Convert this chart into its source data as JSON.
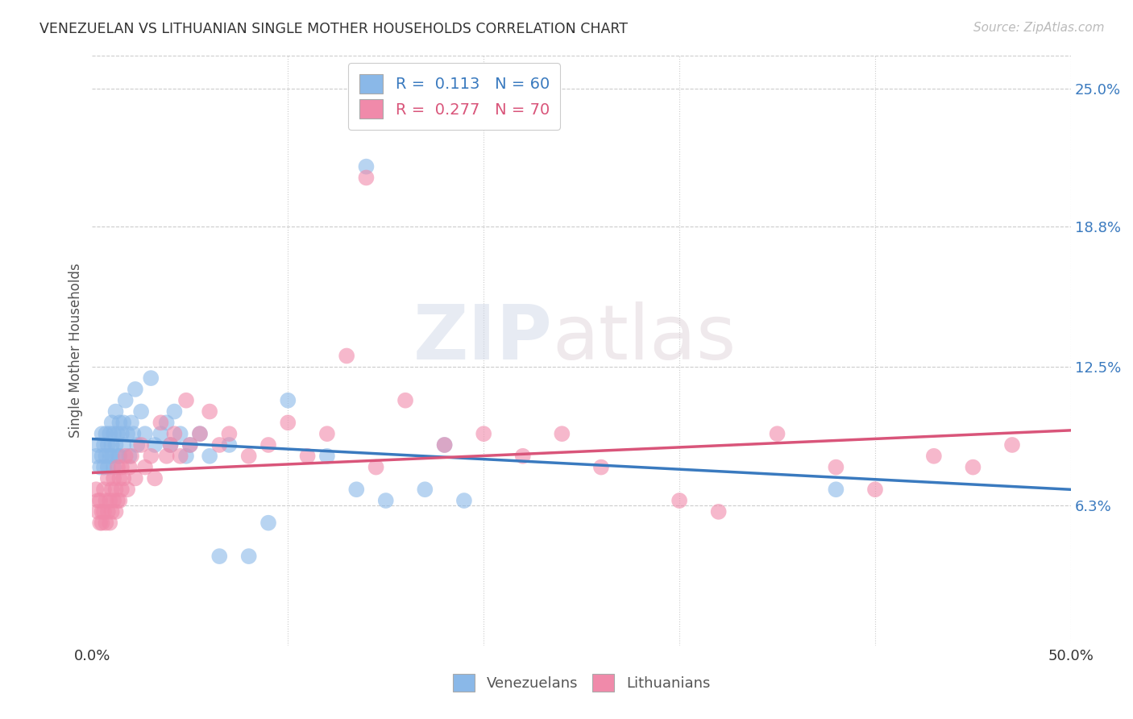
{
  "title": "VENEZUELAN VS LITHUANIAN SINGLE MOTHER HOUSEHOLDS CORRELATION CHART",
  "source": "Source: ZipAtlas.com",
  "ylabel": "Single Mother Households",
  "ytick_labels": [
    "6.3%",
    "12.5%",
    "18.8%",
    "25.0%"
  ],
  "ytick_values": [
    0.063,
    0.125,
    0.188,
    0.25
  ],
  "xlim": [
    0.0,
    0.5
  ],
  "ylim": [
    0.0,
    0.265
  ],
  "venezuelan_color": "#8ab8e8",
  "lithuanian_color": "#f08aaa",
  "venezuelan_line_color": "#3a7abf",
  "lithuanian_line_color": "#d9557a",
  "background_color": "#ffffff",
  "grid_color": "#cccccc",
  "watermark": "ZIPatlas",
  "venezuelan_x": [
    0.002,
    0.003,
    0.004,
    0.005,
    0.005,
    0.006,
    0.006,
    0.007,
    0.007,
    0.008,
    0.008,
    0.009,
    0.009,
    0.01,
    0.01,
    0.01,
    0.011,
    0.011,
    0.012,
    0.012,
    0.013,
    0.013,
    0.014,
    0.014,
    0.015,
    0.016,
    0.016,
    0.017,
    0.018,
    0.019,
    0.02,
    0.021,
    0.022,
    0.023,
    0.025,
    0.027,
    0.03,
    0.032,
    0.035,
    0.038,
    0.04,
    0.042,
    0.045,
    0.048,
    0.05,
    0.055,
    0.06,
    0.065,
    0.07,
    0.08,
    0.09,
    0.1,
    0.12,
    0.135,
    0.14,
    0.15,
    0.17,
    0.18,
    0.19,
    0.38
  ],
  "venezuelan_y": [
    0.085,
    0.09,
    0.08,
    0.095,
    0.085,
    0.09,
    0.08,
    0.085,
    0.095,
    0.08,
    0.09,
    0.085,
    0.095,
    0.09,
    0.085,
    0.1,
    0.08,
    0.095,
    0.09,
    0.105,
    0.085,
    0.095,
    0.1,
    0.085,
    0.095,
    0.09,
    0.1,
    0.11,
    0.095,
    0.085,
    0.1,
    0.095,
    0.115,
    0.09,
    0.105,
    0.095,
    0.12,
    0.09,
    0.095,
    0.1,
    0.09,
    0.105,
    0.095,
    0.085,
    0.09,
    0.095,
    0.085,
    0.04,
    0.09,
    0.04,
    0.055,
    0.11,
    0.085,
    0.07,
    0.215,
    0.065,
    0.07,
    0.09,
    0.065,
    0.07
  ],
  "lithuanian_x": [
    0.002,
    0.003,
    0.003,
    0.004,
    0.004,
    0.005,
    0.005,
    0.006,
    0.006,
    0.007,
    0.007,
    0.008,
    0.008,
    0.009,
    0.009,
    0.01,
    0.01,
    0.011,
    0.011,
    0.012,
    0.012,
    0.013,
    0.013,
    0.014,
    0.014,
    0.015,
    0.015,
    0.016,
    0.017,
    0.018,
    0.019,
    0.02,
    0.022,
    0.025,
    0.027,
    0.03,
    0.032,
    0.035,
    0.038,
    0.04,
    0.042,
    0.045,
    0.048,
    0.05,
    0.055,
    0.06,
    0.065,
    0.07,
    0.08,
    0.09,
    0.1,
    0.11,
    0.12,
    0.13,
    0.14,
    0.145,
    0.16,
    0.18,
    0.2,
    0.22,
    0.24,
    0.26,
    0.3,
    0.32,
    0.35,
    0.38,
    0.4,
    0.43,
    0.45,
    0.47
  ],
  "lithuanian_y": [
    0.07,
    0.065,
    0.06,
    0.065,
    0.055,
    0.06,
    0.055,
    0.07,
    0.06,
    0.065,
    0.055,
    0.06,
    0.075,
    0.065,
    0.055,
    0.07,
    0.06,
    0.075,
    0.065,
    0.07,
    0.06,
    0.08,
    0.065,
    0.075,
    0.065,
    0.08,
    0.07,
    0.075,
    0.085,
    0.07,
    0.08,
    0.085,
    0.075,
    0.09,
    0.08,
    0.085,
    0.075,
    0.1,
    0.085,
    0.09,
    0.095,
    0.085,
    0.11,
    0.09,
    0.095,
    0.105,
    0.09,
    0.095,
    0.085,
    0.09,
    0.1,
    0.085,
    0.095,
    0.13,
    0.21,
    0.08,
    0.11,
    0.09,
    0.095,
    0.085,
    0.095,
    0.08,
    0.065,
    0.06,
    0.095,
    0.08,
    0.07,
    0.085,
    0.08,
    0.09
  ]
}
